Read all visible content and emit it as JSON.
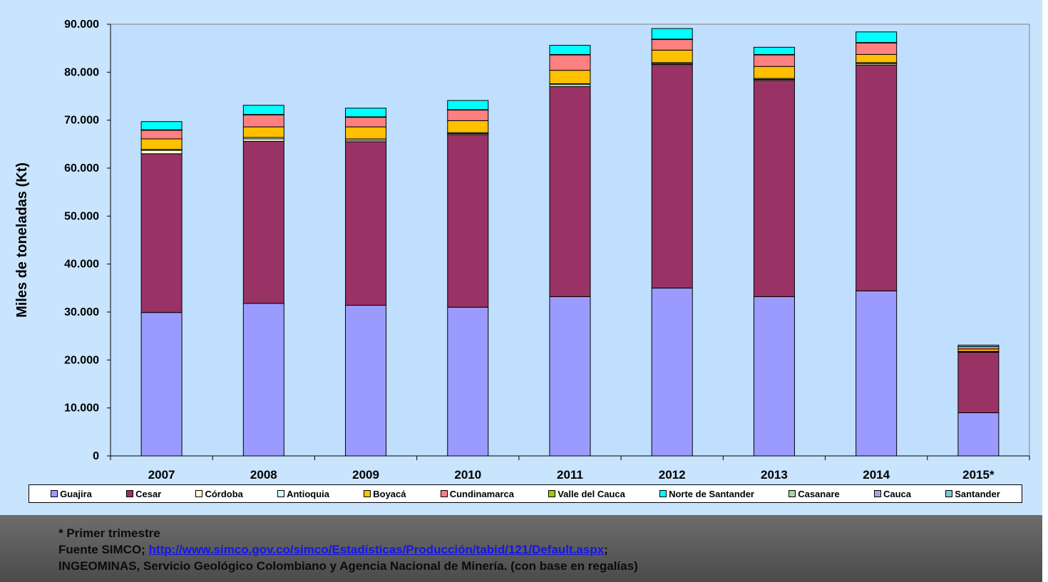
{
  "chart_data": {
    "type": "bar",
    "stacked": true,
    "categories": [
      "2007",
      "2008",
      "2009",
      "2010",
      "2011",
      "2012",
      "2013",
      "2014",
      "2015*"
    ],
    "ylabel": "Miles de toneladas (Kt)",
    "xlabel": "",
    "title": "",
    "ylim": [
      0,
      90000
    ],
    "yticks": [
      "0",
      "10.000",
      "20.000",
      "30.000",
      "40.000",
      "50.000",
      "60.000",
      "70.000",
      "80.000",
      "90.000"
    ],
    "grid": false,
    "legend_position": "bottom",
    "series": [
      {
        "name": "Guajira",
        "color": "#9b9bff",
        "values": [
          29900,
          31800,
          31400,
          31000,
          33200,
          35000,
          33200,
          34400,
          9000
        ]
      },
      {
        "name": "Cesar",
        "color": "#993366",
        "values": [
          33100,
          33800,
          34100,
          36000,
          43800,
          46600,
          45100,
          47100,
          12600
        ]
      },
      {
        "name": "Córdoba",
        "color": "#ffffcc",
        "values": [
          700,
          500,
          300,
          200,
          400,
          200,
          200,
          300,
          100
        ]
      },
      {
        "name": "Antioquia",
        "color": "#ccffff",
        "values": [
          200,
          300,
          300,
          200,
          200,
          200,
          200,
          200,
          100
        ]
      },
      {
        "name": "Boyacá",
        "color": "#ffc000",
        "values": [
          2200,
          2200,
          2500,
          2500,
          2800,
          2600,
          2500,
          1700,
          500
        ]
      },
      {
        "name": "Cundinamarca",
        "color": "#ff8080",
        "values": [
          1800,
          2500,
          2000,
          2200,
          3200,
          2200,
          2400,
          2400,
          500
        ]
      },
      {
        "name": "Valle del Cauca",
        "color": "#99cc00",
        "values": [
          100,
          100,
          100,
          100,
          100,
          100,
          100,
          100,
          0
        ]
      },
      {
        "name": "Norte de Santander",
        "color": "#00ffff",
        "values": [
          1700,
          1900,
          1800,
          1900,
          1900,
          2200,
          1500,
          2200,
          300
        ]
      },
      {
        "name": "Casanare",
        "color": "#a0d8a0",
        "values": [
          0,
          0,
          0,
          0,
          0,
          0,
          0,
          0,
          0
        ]
      },
      {
        "name": "Cauca",
        "color": "#b0a0d8",
        "values": [
          0,
          0,
          0,
          0,
          0,
          0,
          0,
          0,
          0
        ]
      },
      {
        "name": "Santander",
        "color": "#7fc8d8",
        "values": [
          0,
          0,
          0,
          0,
          0,
          0,
          0,
          0,
          0
        ]
      }
    ]
  },
  "footer": {
    "note": "* Primer trimestre",
    "source_prefix": "Fuente SIMCO; ",
    "source_link": "http://www.simco.gov.co/simco/Estadísticas/Producción/tabid/121/Default.aspx",
    "source_suffix": ";",
    "line3": "INGEOMINAS, Servicio Geológico Colombiano y  Agencia Nacional de Minería. (con base en regalías)"
  }
}
